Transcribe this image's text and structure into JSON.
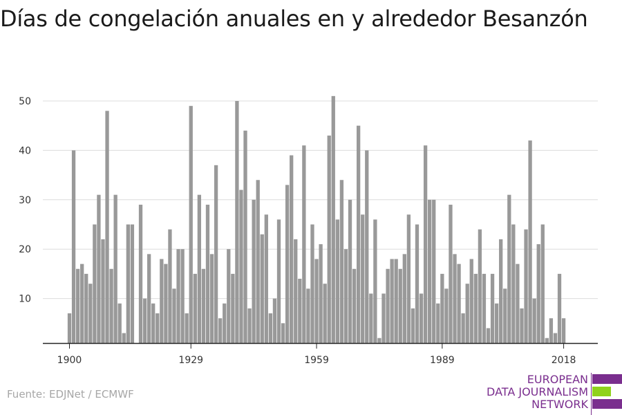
{
  "title": "Días de congelación anuales en y alrededor Besanzón",
  "source": "Fuente: EDJNet / ECMWF",
  "logo": {
    "lines": [
      "EUROPEAN",
      "DATA JOURNALISM",
      "NETWORK"
    ],
    "colors": {
      "purple": "#7a2e8e",
      "green": "#8fd21c"
    }
  },
  "chart_data": {
    "type": "bar",
    "title": "Días de congelación anuales en y alrededor Besanzón",
    "xlabel": "",
    "ylabel": "",
    "x_ticks": [
      1900,
      1929,
      1959,
      1989,
      2018
    ],
    "y_ticks": [
      10,
      20,
      30,
      40,
      50
    ],
    "xlim": [
      1899.4,
      2019.6
    ],
    "ylim": [
      0,
      55
    ],
    "grid": true,
    "bar_color": "#999999",
    "series": [
      {
        "x": [
          1900,
          1901,
          1902,
          1903,
          1904,
          1905,
          1906,
          1907,
          1908,
          1909,
          1910,
          1911,
          1912,
          1913,
          1914,
          1915,
          1916,
          1917,
          1918,
          1919,
          1920,
          1921,
          1922,
          1923,
          1924,
          1925,
          1926,
          1927,
          1928,
          1929,
          1930,
          1931,
          1932,
          1933,
          1934,
          1935,
          1936,
          1937,
          1938,
          1939,
          1940,
          1941,
          1942,
          1943,
          1944,
          1945,
          1946,
          1947,
          1948,
          1949,
          1950,
          1951,
          1952,
          1953,
          1954,
          1955,
          1956,
          1957,
          1958,
          1959,
          1960,
          1961,
          1962,
          1963,
          1964,
          1965,
          1966,
          1967,
          1968,
          1969,
          1970,
          1971,
          1972,
          1973,
          1974,
          1975,
          1976,
          1977,
          1978,
          1979,
          1980,
          1981,
          1982,
          1983,
          1984,
          1985,
          1986,
          1987,
          1988,
          1989,
          1990,
          1991,
          1992,
          1993,
          1994,
          1995,
          1996,
          1997,
          1998,
          1999,
          2000,
          2001,
          2002,
          2003,
          2004,
          2005,
          2006,
          2007,
          2008,
          2009,
          2010,
          2011,
          2012,
          2013,
          2014,
          2015,
          2016,
          2017,
          2018
        ],
        "values": [
          7,
          40,
          16,
          17,
          15,
          13,
          25,
          31,
          22,
          48,
          16,
          31,
          9,
          3,
          25,
          25,
          0,
          29,
          10,
          19,
          9,
          7,
          18,
          17,
          24,
          12,
          20,
          20,
          7,
          49,
          15,
          31,
          16,
          29,
          19,
          37,
          6,
          9,
          20,
          15,
          50,
          32,
          44,
          8,
          30,
          34,
          23,
          27,
          7,
          10,
          26,
          5,
          33,
          39,
          22,
          14,
          41,
          12,
          25,
          18,
          21,
          13,
          43,
          51,
          26,
          34,
          20,
          30,
          16,
          45,
          27,
          40,
          11,
          26,
          2,
          11,
          16,
          18,
          18,
          16,
          19,
          27,
          8,
          25,
          11,
          41,
          30,
          30,
          9,
          15,
          12,
          29,
          19,
          17,
          7,
          13,
          18,
          15,
          24,
          15,
          4,
          15,
          9,
          22,
          12,
          31,
          25,
          17,
          8,
          24,
          42,
          10,
          21,
          25,
          2,
          6,
          3,
          15,
          6
        ]
      }
    ]
  }
}
